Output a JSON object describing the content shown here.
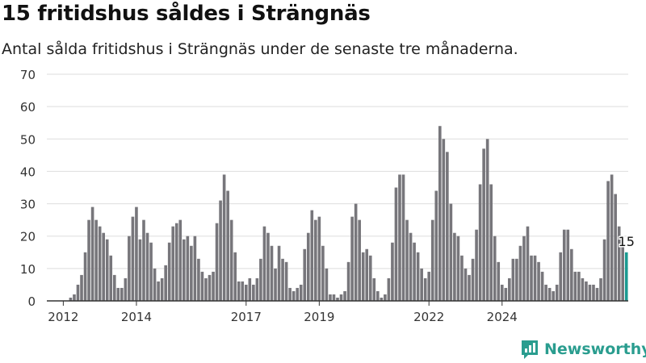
{
  "header": {
    "title": "15 fritidshus såldes i Strängnäs",
    "subtitle": "Antal sålda fritidshus i Strängnäs under de senaste tre månaderna."
  },
  "brand": {
    "name": "Newsworthy",
    "icon": "newsworthy-logo-icon"
  },
  "colors": {
    "bar": "#77767b",
    "highlight": "#1a9a91",
    "grid": "#dddddd",
    "axis": "#333333",
    "text": "#333333"
  },
  "chart_data": {
    "type": "bar",
    "ylim": [
      0,
      70
    ],
    "yticks": [
      0,
      10,
      20,
      30,
      40,
      50,
      60,
      70
    ],
    "grid": "horizontal",
    "xticks": [
      {
        "label": "2012",
        "index": 4
      },
      {
        "label": "2014",
        "index": 24
      },
      {
        "label": "2017",
        "index": 54
      },
      {
        "label": "2019",
        "index": 74
      },
      {
        "label": "2022",
        "index": 104
      },
      {
        "label": "2024",
        "index": 124
      }
    ],
    "highlight_label": "15",
    "values": [
      0,
      0,
      0,
      0,
      0,
      0,
      1,
      2,
      5,
      8,
      15,
      25,
      29,
      25,
      23,
      21,
      19,
      14,
      8,
      4,
      4,
      7,
      20,
      26,
      29,
      19,
      25,
      21,
      18,
      10,
      6,
      7,
      11,
      18,
      23,
      24,
      25,
      19,
      20,
      17,
      20,
      13,
      9,
      7,
      8,
      9,
      24,
      31,
      39,
      34,
      25,
      15,
      6,
      6,
      5,
      7,
      5,
      7,
      13,
      23,
      21,
      17,
      10,
      17,
      13,
      12,
      4,
      3,
      4,
      5,
      16,
      21,
      28,
      25,
      26,
      17,
      10,
      2,
      2,
      1,
      2,
      3,
      12,
      26,
      30,
      25,
      15,
      16,
      14,
      7,
      3,
      1,
      2,
      7,
      18,
      35,
      39,
      39,
      25,
      21,
      18,
      15,
      10,
      7,
      9,
      25,
      34,
      54,
      50,
      46,
      30,
      21,
      20,
      14,
      10,
      8,
      13,
      22,
      36,
      47,
      50,
      36,
      20,
      12,
      5,
      4,
      7,
      13,
      13,
      17,
      20,
      23,
      14,
      14,
      12,
      9,
      5,
      4,
      3,
      5,
      15,
      22,
      22,
      16,
      9,
      9,
      7,
      6,
      5,
      5,
      4,
      7,
      19,
      37,
      39,
      33,
      23,
      20,
      15
    ]
  }
}
